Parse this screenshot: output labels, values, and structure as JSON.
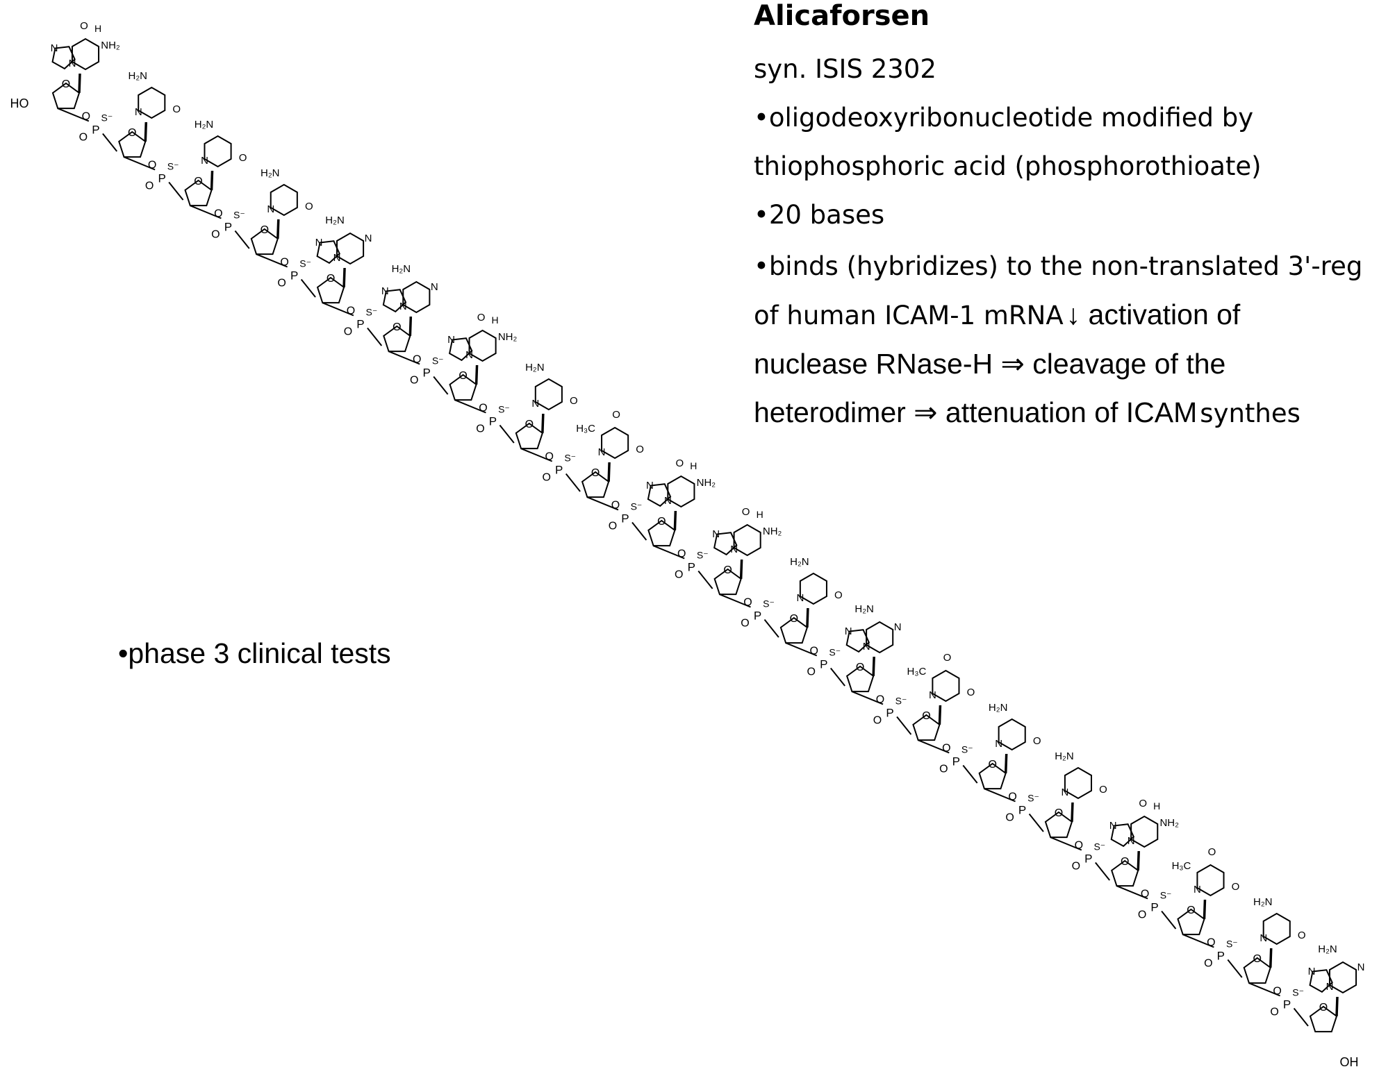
{
  "title": "Alicaforsen",
  "synonym": "syn. ISIS 2302",
  "bullets": {
    "b1_line1": "•oligodeoxyribonucleotide modified by",
    "b1_line2": "thiophosphoric acid (phosphorothioate)",
    "b2": "•20 bases",
    "b3_line1": "•binds (hybridizes) to the non-translated 3'-reg",
    "b3_line2_a": "of human ICAM-1 mRNA",
    "b3_line2_b": "↓  activation of",
    "b3_line3": "nuclease RNase-H ⇒ cleavage of the",
    "b3_line4_a": "heterodimer ⇒ attenuation of ICAM",
    "b3_line4_b": "synthes"
  },
  "phase": "•phase 3 clinical tests",
  "structure": {
    "bases": [
      "G",
      "C",
      "C",
      "C",
      "A",
      "A",
      "G",
      "C",
      "T",
      "G",
      "G",
      "C",
      "A",
      "T",
      "C",
      "C",
      "G",
      "T",
      "C",
      "A"
    ],
    "backbone_label": "O=P(S⁻)",
    "terminal_5": "HO",
    "terminal_3": "OH",
    "atom_labels": {
      "nh2": "NH₂",
      "h2n": "H₂N",
      "h3c": "H₃C",
      "o": "O",
      "n": "N",
      "h": "H",
      "p": "P",
      "s": "S⁻",
      "op": "O=P"
    }
  }
}
